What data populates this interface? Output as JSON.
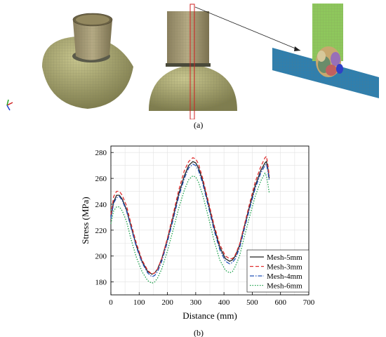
{
  "panel_a": {
    "caption": "(a)"
  },
  "panel_b": {
    "caption": "(b)"
  },
  "chart_data": {
    "type": "line",
    "title": "",
    "xlabel": "Distance (mm)",
    "ylabel": "Stress (MPa)",
    "xlim": [
      0,
      700
    ],
    "ylim": [
      170,
      285
    ],
    "xticks": [
      0,
      100,
      200,
      300,
      400,
      500,
      600,
      700
    ],
    "yticks": [
      180,
      200,
      220,
      240,
      260,
      280
    ],
    "grid": true,
    "legend_position": "bottom-right",
    "series": [
      {
        "name": "Mesh-5mm",
        "color": "#222222",
        "style": "solid",
        "x": [
          0,
          10,
          20,
          30,
          40,
          55,
          70,
          90,
          110,
          130,
          145,
          155,
          165,
          180,
          200,
          220,
          240,
          260,
          275,
          290,
          300,
          310,
          325,
          345,
          365,
          385,
          405,
          420,
          430,
          440,
          455,
          470,
          490,
          510,
          530,
          545,
          550,
          555,
          560
        ],
        "y": [
          230,
          242,
          247,
          247,
          244,
          236,
          224,
          208,
          196,
          188,
          186,
          187,
          190,
          198,
          213,
          230,
          248,
          262,
          270,
          273,
          272,
          268,
          258,
          240,
          222,
          207,
          198,
          196,
          197,
          200,
          208,
          221,
          238,
          254,
          266,
          272,
          273,
          268,
          260
        ]
      },
      {
        "name": "Mesh-3mm",
        "color": "#e03030",
        "style": "dashed",
        "x": [
          0,
          10,
          20,
          30,
          40,
          55,
          70,
          90,
          110,
          130,
          145,
          155,
          165,
          180,
          200,
          220,
          240,
          260,
          275,
          290,
          300,
          310,
          325,
          345,
          365,
          385,
          405,
          420,
          430,
          440,
          455,
          470,
          490,
          510,
          530,
          545,
          550,
          555,
          560
        ],
        "y": [
          232,
          246,
          250,
          250,
          247,
          239,
          226,
          210,
          197,
          189,
          186,
          187,
          190,
          198,
          214,
          232,
          251,
          266,
          273,
          276,
          275,
          271,
          260,
          242,
          224,
          209,
          200,
          198,
          198,
          201,
          209,
          222,
          240,
          257,
          269,
          276,
          277,
          271,
          262
        ]
      },
      {
        "name": "Mesh-4mm",
        "color": "#2050b8",
        "style": "dashdot",
        "x": [
          0,
          10,
          20,
          30,
          40,
          55,
          70,
          90,
          110,
          130,
          145,
          155,
          165,
          180,
          200,
          220,
          240,
          260,
          275,
          290,
          300,
          310,
          325,
          345,
          365,
          385,
          405,
          420,
          430,
          440,
          455,
          470,
          490,
          510,
          530,
          545,
          550,
          555,
          560
        ],
        "y": [
          229,
          241,
          245,
          246,
          243,
          235,
          223,
          207,
          195,
          187,
          184,
          185,
          188,
          196,
          211,
          228,
          246,
          260,
          268,
          271,
          270,
          266,
          256,
          238,
          220,
          205,
          196,
          194,
          195,
          198,
          206,
          219,
          236,
          252,
          264,
          270,
          271,
          266,
          258
        ]
      },
      {
        "name": "Mesh-6mm",
        "color": "#1aa04a",
        "style": "dotted",
        "x": [
          0,
          10,
          20,
          30,
          40,
          55,
          70,
          90,
          110,
          130,
          145,
          155,
          165,
          180,
          200,
          220,
          240,
          260,
          275,
          290,
          300,
          310,
          325,
          345,
          365,
          385,
          405,
          420,
          430,
          440,
          455,
          470,
          490,
          510,
          530,
          545,
          550,
          555,
          560
        ],
        "y": [
          225,
          235,
          238,
          238,
          235,
          227,
          214,
          199,
          188,
          181,
          179,
          180,
          183,
          190,
          204,
          220,
          237,
          251,
          259,
          262,
          261,
          257,
          247,
          230,
          212,
          197,
          189,
          187,
          188,
          192,
          200,
          213,
          230,
          246,
          258,
          264,
          262,
          256,
          249
        ]
      }
    ]
  }
}
